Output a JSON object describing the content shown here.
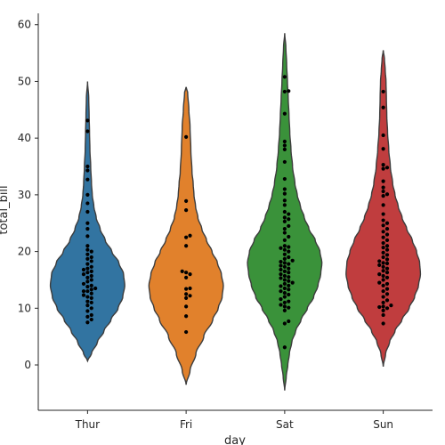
{
  "chart_data": {
    "type": "violin",
    "xlabel": "day",
    "ylabel": "total_bill",
    "categories": [
      "Thur",
      "Fri",
      "Sat",
      "Sun"
    ],
    "ylim": [
      -8,
      62
    ],
    "yticks": [
      0,
      10,
      20,
      30,
      40,
      50,
      60
    ],
    "grid": false,
    "colors": [
      "#3274a1",
      "#e1812c",
      "#3a923a",
      "#c03d3e"
    ],
    "violins": [
      {
        "category": "Thur",
        "min": 0.7,
        "max": 50.0,
        "profile": [
          [
            0.7,
            0.0
          ],
          [
            2,
            0.1
          ],
          [
            4,
            0.25
          ],
          [
            6,
            0.42
          ],
          [
            8,
            0.6
          ],
          [
            10,
            0.78
          ],
          [
            12,
            0.9
          ],
          [
            14,
            0.95
          ],
          [
            16,
            0.92
          ],
          [
            18,
            0.8
          ],
          [
            20,
            0.62
          ],
          [
            22,
            0.45
          ],
          [
            24,
            0.32
          ],
          [
            26,
            0.22
          ],
          [
            28,
            0.16
          ],
          [
            30,
            0.12
          ],
          [
            32,
            0.1
          ],
          [
            35,
            0.08
          ],
          [
            38,
            0.06
          ],
          [
            41,
            0.05
          ],
          [
            44,
            0.04
          ],
          [
            47,
            0.03
          ],
          [
            50,
            0.0
          ]
        ],
        "points": [
          7.5,
          8.0,
          8.5,
          8.8,
          9.5,
          10.0,
          10.5,
          11.0,
          11.2,
          11.8,
          12.0,
          12.3,
          12.6,
          13.0,
          13.0,
          13.3,
          13.5,
          13.8,
          14.0,
          14.3,
          14.7,
          15.0,
          15.4,
          15.7,
          16.0,
          16.3,
          16.5,
          16.8,
          17.0,
          17.3,
          17.8,
          18.3,
          18.7,
          19.0,
          19.5,
          20.0,
          20.3,
          21.0,
          22.7,
          24.0,
          25.0,
          27.0,
          28.5,
          30.0,
          32.7,
          34.3,
          35.0,
          41.2,
          43.1
        ]
      },
      {
        "category": "Fri",
        "min": -3.5,
        "max": 49.0,
        "profile": [
          [
            -3.5,
            0.0
          ],
          [
            -1,
            0.1
          ],
          [
            2,
            0.25
          ],
          [
            5,
            0.45
          ],
          [
            8,
            0.68
          ],
          [
            10,
            0.82
          ],
          [
            12,
            0.92
          ],
          [
            14,
            0.95
          ],
          [
            16,
            0.9
          ],
          [
            18,
            0.8
          ],
          [
            20,
            0.66
          ],
          [
            22,
            0.52
          ],
          [
            24,
            0.4
          ],
          [
            26,
            0.3
          ],
          [
            28,
            0.24
          ],
          [
            30,
            0.2
          ],
          [
            32,
            0.18
          ],
          [
            34,
            0.15
          ],
          [
            38,
            0.12
          ],
          [
            42,
            0.1
          ],
          [
            45,
            0.07
          ],
          [
            48,
            0.04
          ],
          [
            49,
            0.0
          ]
        ],
        "points": [
          5.8,
          8.6,
          10.3,
          11.8,
          12.2,
          12.5,
          13.4,
          13.5,
          15.4,
          16.0,
          16.3,
          16.5,
          21.0,
          22.5,
          22.8,
          27.3,
          28.9,
          40.2
        ]
      },
      {
        "category": "Sat",
        "min": -4.5,
        "max": 58.5,
        "profile": [
          [
            -4.5,
            0.0
          ],
          [
            -2,
            0.04
          ],
          [
            0,
            0.08
          ],
          [
            2,
            0.12
          ],
          [
            4,
            0.18
          ],
          [
            6,
            0.28
          ],
          [
            8,
            0.42
          ],
          [
            10,
            0.58
          ],
          [
            12,
            0.74
          ],
          [
            14,
            0.85
          ],
          [
            16,
            0.92
          ],
          [
            18,
            0.95
          ],
          [
            20,
            0.9
          ],
          [
            22,
            0.78
          ],
          [
            24,
            0.62
          ],
          [
            26,
            0.5
          ],
          [
            28,
            0.4
          ],
          [
            30,
            0.32
          ],
          [
            32,
            0.26
          ],
          [
            35,
            0.2
          ],
          [
            38,
            0.16
          ],
          [
            41,
            0.13
          ],
          [
            44,
            0.11
          ],
          [
            47,
            0.09
          ],
          [
            50,
            0.07
          ],
          [
            53,
            0.05
          ],
          [
            56,
            0.03
          ],
          [
            58.5,
            0.0
          ]
        ],
        "points": [
          3.1,
          7.3,
          7.7,
          9.6,
          10.1,
          10.3,
          10.6,
          11.0,
          11.2,
          11.6,
          12.0,
          12.4,
          12.7,
          13.0,
          13.3,
          13.5,
          13.9,
          14.0,
          14.3,
          14.5,
          14.8,
          15.0,
          15.3,
          15.5,
          15.7,
          16.0,
          16.3,
          16.5,
          16.8,
          17.0,
          17.3,
          17.5,
          17.8,
          18.0,
          18.2,
          18.4,
          18.7,
          19.0,
          19.5,
          20.0,
          20.3,
          20.6,
          20.8,
          21.0,
          22.0,
          22.6,
          23.3,
          24.0,
          24.5,
          25.3,
          25.7,
          26.0,
          26.6,
          27.0,
          28.2,
          29.0,
          30.2,
          31.0,
          32.8,
          35.8,
          38.0,
          38.7,
          39.4,
          44.3,
          48.2,
          48.3,
          50.8
        ]
      },
      {
        "category": "Sun",
        "min": -0.3,
        "max": 55.5,
        "profile": [
          [
            -0.3,
            0.0
          ],
          [
            2,
            0.06
          ],
          [
            4,
            0.16
          ],
          [
            6,
            0.3
          ],
          [
            8,
            0.48
          ],
          [
            10,
            0.66
          ],
          [
            12,
            0.8
          ],
          [
            14,
            0.9
          ],
          [
            16,
            0.95
          ],
          [
            18,
            0.93
          ],
          [
            20,
            0.85
          ],
          [
            22,
            0.74
          ],
          [
            24,
            0.6
          ],
          [
            26,
            0.48
          ],
          [
            28,
            0.38
          ],
          [
            30,
            0.3
          ],
          [
            32,
            0.24
          ],
          [
            35,
            0.18
          ],
          [
            38,
            0.14
          ],
          [
            41,
            0.11
          ],
          [
            44,
            0.09
          ],
          [
            47,
            0.08
          ],
          [
            50,
            0.07
          ],
          [
            52,
            0.05
          ],
          [
            54,
            0.03
          ],
          [
            55.5,
            0.0
          ]
        ],
        "points": [
          7.3,
          8.8,
          9.6,
          10.0,
          10.2,
          10.3,
          10.5,
          11.0,
          11.4,
          12.0,
          12.5,
          13.0,
          13.4,
          14.0,
          14.3,
          14.5,
          15.0,
          15.4,
          15.7,
          16.0,
          16.3,
          16.6,
          17.0,
          17.3,
          17.6,
          17.9,
          18.0,
          18.3,
          18.6,
          19.0,
          19.4,
          19.8,
          20.3,
          20.7,
          21.0,
          21.5,
          22.0,
          22.5,
          23.0,
          23.5,
          24.0,
          24.6,
          25.0,
          25.5,
          26.6,
          28.2,
          29.8,
          30.1,
          30.6,
          31.3,
          32.4,
          34.6,
          34.8,
          35.3,
          38.1,
          40.5,
          45.4,
          48.2
        ]
      }
    ]
  }
}
